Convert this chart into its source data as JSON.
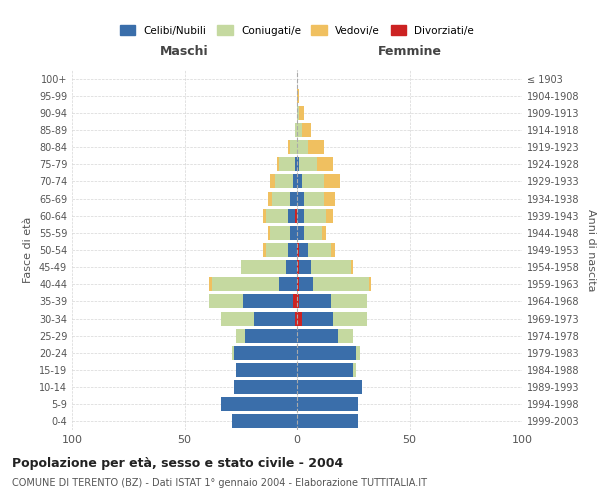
{
  "age_groups": [
    "0-4",
    "5-9",
    "10-14",
    "15-19",
    "20-24",
    "25-29",
    "30-34",
    "35-39",
    "40-44",
    "45-49",
    "50-54",
    "55-59",
    "60-64",
    "65-69",
    "70-74",
    "75-79",
    "80-84",
    "85-89",
    "90-94",
    "95-99",
    "100+"
  ],
  "birth_years": [
    "1999-2003",
    "1994-1998",
    "1989-1993",
    "1984-1988",
    "1979-1983",
    "1974-1978",
    "1969-1973",
    "1964-1968",
    "1959-1963",
    "1954-1958",
    "1949-1953",
    "1944-1948",
    "1939-1943",
    "1934-1938",
    "1929-1933",
    "1924-1928",
    "1919-1923",
    "1914-1918",
    "1909-1913",
    "1904-1908",
    "≤ 1903"
  ],
  "maschi": {
    "celibi": [
      29,
      34,
      28,
      27,
      28,
      23,
      18,
      22,
      8,
      5,
      4,
      3,
      3,
      3,
      2,
      1,
      0,
      0,
      0,
      0,
      0
    ],
    "coniugati": [
      0,
      0,
      0,
      0,
      1,
      4,
      15,
      15,
      30,
      20,
      10,
      9,
      10,
      8,
      8,
      7,
      3,
      1,
      0,
      0,
      0
    ],
    "vedovi": [
      0,
      0,
      0,
      0,
      0,
      0,
      0,
      0,
      1,
      0,
      1,
      1,
      1,
      2,
      2,
      1,
      1,
      0,
      0,
      0,
      0
    ],
    "divorziati": [
      0,
      0,
      0,
      0,
      0,
      0,
      1,
      2,
      0,
      0,
      0,
      0,
      1,
      0,
      0,
      0,
      0,
      0,
      0,
      0,
      0
    ]
  },
  "femmine": {
    "nubili": [
      27,
      27,
      29,
      25,
      26,
      18,
      14,
      14,
      6,
      5,
      4,
      3,
      3,
      3,
      2,
      1,
      0,
      0,
      0,
      0,
      0
    ],
    "coniugate": [
      0,
      0,
      0,
      1,
      2,
      7,
      15,
      16,
      25,
      18,
      10,
      8,
      10,
      9,
      10,
      8,
      5,
      2,
      1,
      0,
      0
    ],
    "vedove": [
      0,
      0,
      0,
      0,
      0,
      0,
      0,
      0,
      1,
      1,
      2,
      2,
      3,
      5,
      7,
      7,
      7,
      4,
      2,
      1,
      0
    ],
    "divorziate": [
      0,
      0,
      0,
      0,
      0,
      0,
      2,
      1,
      1,
      1,
      1,
      0,
      0,
      0,
      0,
      0,
      0,
      0,
      0,
      0,
      0
    ]
  },
  "colors": {
    "celibi_nubili": "#3a6eaa",
    "coniugati": "#c5d9a0",
    "vedovi": "#f0c060",
    "divorziati": "#cc2222"
  },
  "title": "Popolazione per età, sesso e stato civile - 2004",
  "subtitle": "COMUNE DI TERENTO (BZ) - Dati ISTAT 1° gennaio 2004 - Elaborazione TUTTITALIA.IT",
  "xlabel_left": "Maschi",
  "xlabel_right": "Femmine",
  "ylabel_left": "Fasce di età",
  "ylabel_right": "Anni di nascita",
  "xlim": 100,
  "legend_labels": [
    "Celibi/Nubili",
    "Coniugati/e",
    "Vedovi/e",
    "Divorziati/e"
  ],
  "background_color": "#ffffff",
  "grid_color": "#cccccc"
}
